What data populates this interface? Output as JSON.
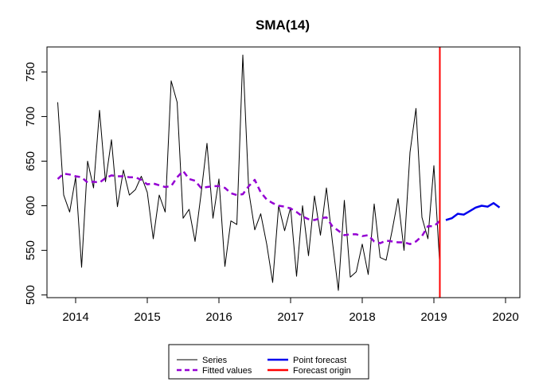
{
  "chart_data": {
    "type": "line",
    "title": "SMA(14)",
    "xlabel": "",
    "ylabel": "",
    "xlim": [
      2013.6,
      2020.2
    ],
    "ylim": [
      497,
      778
    ],
    "x_ticks": [
      2014,
      2015,
      2016,
      2017,
      2018,
      2019,
      2020
    ],
    "x_tick_labels": [
      "2014",
      "2015",
      "2016",
      "2017",
      "2018",
      "2019",
      "2020"
    ],
    "y_ticks": [
      500,
      550,
      600,
      650,
      700,
      750
    ],
    "y_tick_labels": [
      "500",
      "550",
      "600",
      "650",
      "700",
      "750"
    ],
    "grid": false,
    "legend_position": "bottom",
    "legend": {
      "col1": [
        "Series",
        "Fitted values"
      ],
      "col2": [
        "Point forecast",
        "Forecast origin"
      ]
    },
    "series": [
      {
        "name": "Series",
        "color": "#000000",
        "style": "solid",
        "x": [
          2013.75,
          2013.833,
          2013.917,
          2014.0,
          2014.083,
          2014.167,
          2014.25,
          2014.333,
          2014.417,
          2014.5,
          2014.583,
          2014.667,
          2014.75,
          2014.833,
          2014.917,
          2015.0,
          2015.083,
          2015.167,
          2015.25,
          2015.333,
          2015.417,
          2015.5,
          2015.583,
          2015.667,
          2015.75,
          2015.833,
          2015.917,
          2016.0,
          2016.083,
          2016.167,
          2016.25,
          2016.333,
          2016.417,
          2016.5,
          2016.583,
          2016.667,
          2016.75,
          2016.833,
          2016.917,
          2017.0,
          2017.083,
          2017.167,
          2017.25,
          2017.333,
          2017.417,
          2017.5,
          2017.583,
          2017.667,
          2017.75,
          2017.833,
          2017.917,
          2018.0,
          2018.083,
          2018.167,
          2018.25,
          2018.333,
          2018.417,
          2018.5,
          2018.583,
          2018.667,
          2018.75,
          2018.833,
          2018.917,
          2019.0,
          2019.083
        ],
        "y": [
          716,
          612,
          593,
          632,
          531,
          650,
          620,
          707,
          627,
          674,
          599,
          640,
          612,
          618,
          633,
          615,
          563,
          612,
          593,
          740,
          716,
          586,
          596,
          560,
          613,
          670,
          586,
          630,
          532,
          583,
          579,
          769,
          616,
          573,
          591,
          557,
          514,
          600,
          572,
          598,
          521,
          600,
          544,
          611,
          567,
          620,
          560,
          505,
          606,
          520,
          526,
          557,
          523,
          602,
          542,
          539,
          572,
          608,
          550,
          660,
          709,
          587,
          563,
          645,
          532
        ]
      },
      {
        "name": "Fitted values",
        "color": "#9400D3",
        "style": "dashed",
        "x": [
          2013.75,
          2013.833,
          2013.917,
          2014.0,
          2014.083,
          2014.167,
          2014.25,
          2014.333,
          2014.417,
          2014.5,
          2014.583,
          2014.667,
          2014.75,
          2014.833,
          2014.917,
          2015.0,
          2015.083,
          2015.167,
          2015.25,
          2015.333,
          2015.417,
          2015.5,
          2015.583,
          2015.667,
          2015.75,
          2015.833,
          2015.917,
          2016.0,
          2016.083,
          2016.167,
          2016.25,
          2016.333,
          2016.417,
          2016.5,
          2016.583,
          2016.667,
          2016.75,
          2016.833,
          2016.917,
          2017.0,
          2017.083,
          2017.167,
          2017.25,
          2017.333,
          2017.417,
          2017.5,
          2017.583,
          2017.667,
          2017.75,
          2017.833,
          2017.917,
          2018.0,
          2018.083,
          2018.167,
          2018.25,
          2018.333,
          2018.417,
          2018.5,
          2018.583,
          2018.667,
          2018.75,
          2018.833,
          2018.917,
          2019.0,
          2019.083
        ],
        "y": [
          630,
          636,
          635,
          633,
          632,
          626,
          627,
          626,
          631,
          634,
          633,
          633,
          632,
          632,
          629,
          624,
          625,
          623,
          621,
          622,
          632,
          639,
          630,
          628,
          620,
          621,
          622,
          622,
          620,
          614,
          612,
          613,
          622,
          629,
          615,
          607,
          603,
          600,
          599,
          597,
          593,
          588,
          585,
          584,
          586,
          587,
          577,
          572,
          567,
          568,
          568,
          566,
          567,
          560,
          558,
          561,
          560,
          559,
          559,
          557,
          560,
          566,
          577,
          577,
          583
        ]
      },
      {
        "name": "Point forecast",
        "color": "#0000EE",
        "style": "solid",
        "x": [
          2019.167,
          2019.25,
          2019.333,
          2019.417,
          2019.5,
          2019.583,
          2019.667,
          2019.75,
          2019.833,
          2019.917
        ],
        "y": [
          584,
          586,
          591,
          590,
          594,
          598,
          600,
          599,
          603,
          598
        ]
      }
    ],
    "forecast_origin": {
      "x": 2019.083,
      "color": "#FF0000"
    }
  },
  "legend": {
    "series_label": "Series",
    "fitted_label": "Fitted values",
    "forecast_label": "Point forecast",
    "origin_label": "Forecast origin"
  }
}
